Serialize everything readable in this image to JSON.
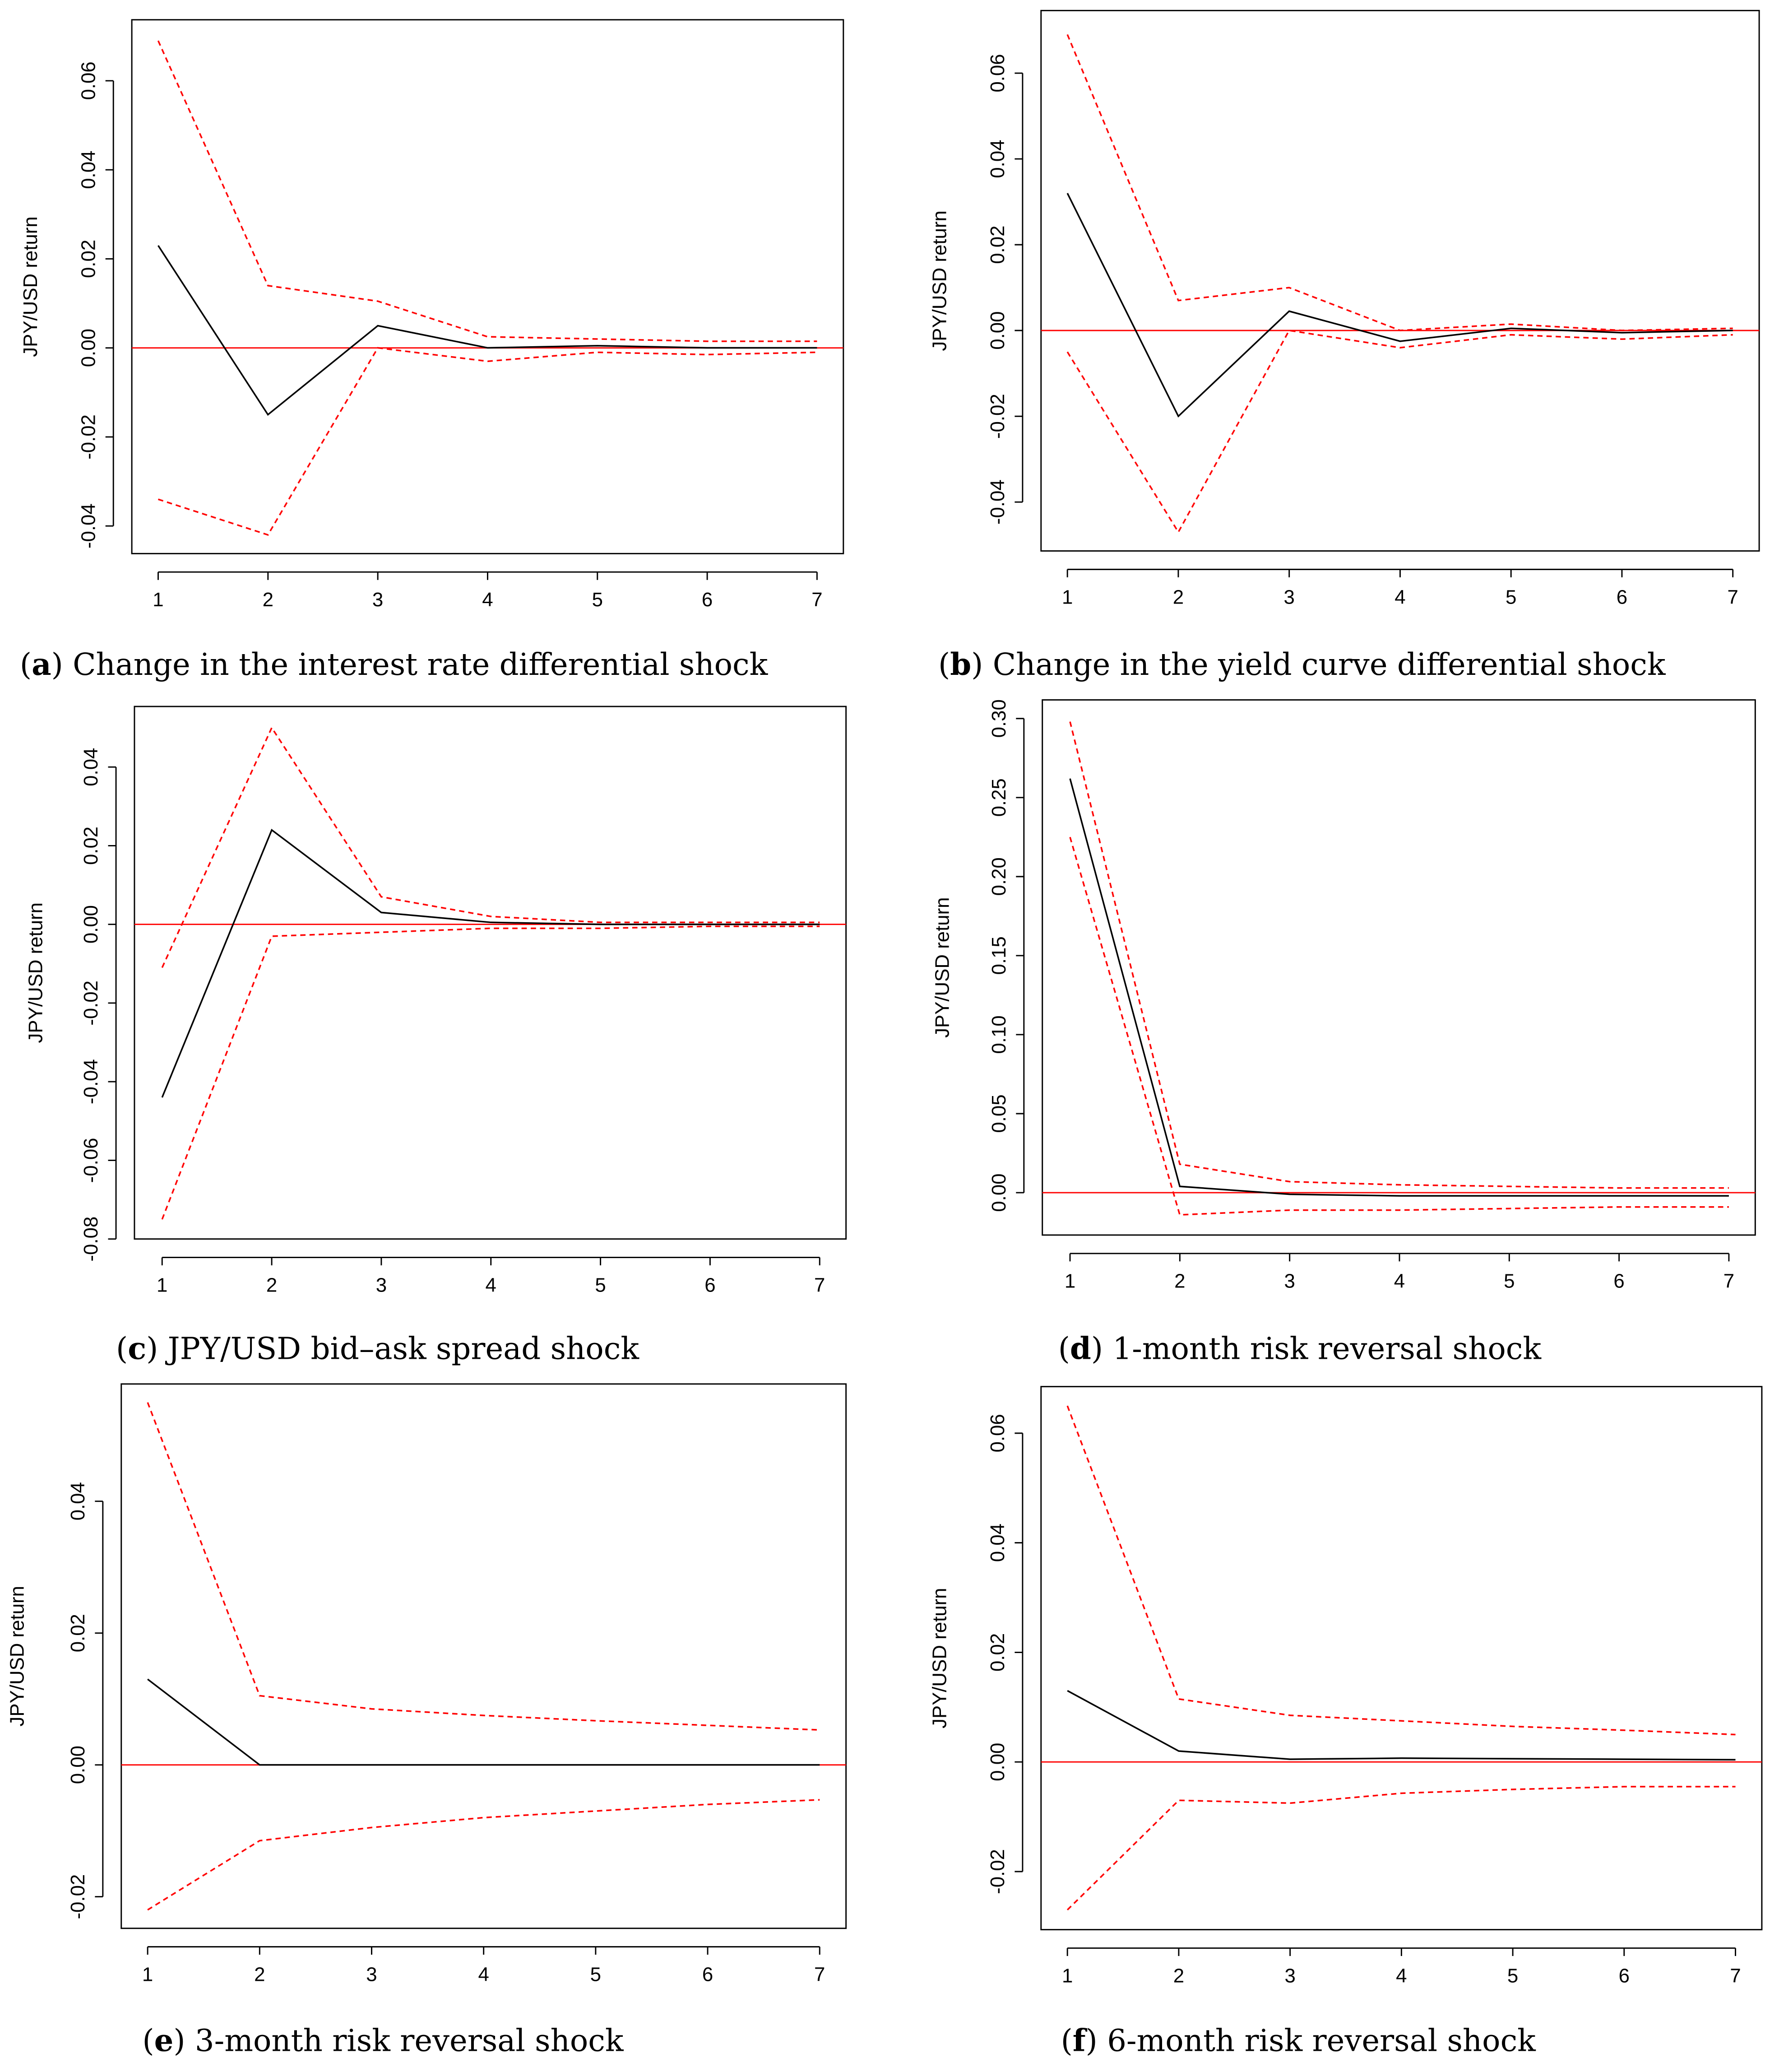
{
  "chart_data": [
    {
      "type": "line",
      "id": "a",
      "caption_letter": "a",
      "caption": "Change in the interest rate differential shock",
      "ylabel": "JPY/USD return",
      "xlabel": "",
      "x": [
        1,
        2,
        3,
        4,
        5,
        6,
        7
      ],
      "xticks": [
        "1",
        "2",
        "3",
        "4",
        "5",
        "6",
        "7"
      ],
      "yticks": [
        -0.04,
        -0.02,
        0.0,
        0.02,
        0.04,
        0.06
      ],
      "ytick_labels": [
        "-0.04",
        "-0.02",
        "0.00",
        "0.02",
        "0.04",
        "0.06"
      ],
      "ylim": [
        -0.0462,
        0.0737
      ],
      "series": [
        {
          "name": "irf",
          "style": "solid",
          "color": "#000000",
          "values": [
            0.023,
            -0.015,
            0.005,
            0.0,
            0.0005,
            0.0,
            0.0
          ]
        },
        {
          "name": "upper",
          "style": "dashed",
          "color": "#ff0000",
          "values": [
            0.069,
            0.014,
            0.0105,
            0.0025,
            0.002,
            0.0015,
            0.0015
          ]
        },
        {
          "name": "lower",
          "style": "dashed",
          "color": "#ff0000",
          "values": [
            -0.034,
            -0.042,
            0.0,
            -0.003,
            -0.001,
            -0.0015,
            -0.001
          ]
        }
      ]
    },
    {
      "type": "line",
      "id": "b",
      "caption_letter": "b",
      "caption": "Change in the yield curve differential shock",
      "ylabel": "JPY/USD return",
      "xlabel": "",
      "x": [
        1,
        2,
        3,
        4,
        5,
        6,
        7
      ],
      "xticks": [
        "1",
        "2",
        "3",
        "4",
        "5",
        "6",
        "7"
      ],
      "yticks": [
        -0.04,
        -0.02,
        0.0,
        0.02,
        0.04,
        0.06
      ],
      "ytick_labels": [
        "-0.04",
        "-0.02",
        "0.00",
        "0.02",
        "0.04",
        "0.06"
      ],
      "ylim": [
        -0.0514,
        0.0746
      ],
      "series": [
        {
          "name": "irf",
          "style": "solid",
          "color": "#000000",
          "values": [
            0.032,
            -0.02,
            0.0045,
            -0.0025,
            0.0005,
            -0.0005,
            0.0
          ]
        },
        {
          "name": "upper",
          "style": "dashed",
          "color": "#ff0000",
          "values": [
            0.069,
            0.007,
            0.01,
            0.0,
            0.0015,
            0.0,
            0.0005
          ]
        },
        {
          "name": "lower",
          "style": "dashed",
          "color": "#ff0000",
          "values": [
            -0.005,
            -0.047,
            0.0,
            -0.004,
            -0.001,
            -0.002,
            -0.001
          ]
        }
      ]
    },
    {
      "type": "line",
      "id": "c",
      "caption_letter": "c",
      "caption": "JPY/USD bid–ask spread shock",
      "ylabel": "JPY/USD return",
      "xlabel": "",
      "x": [
        1,
        2,
        3,
        4,
        5,
        6,
        7
      ],
      "xticks": [
        "1",
        "2",
        "3",
        "4",
        "5",
        "6",
        "7"
      ],
      "yticks": [
        -0.08,
        -0.06,
        -0.04,
        -0.02,
        0.0,
        0.02,
        0.04
      ],
      "ytick_labels": [
        "-0.08",
        "-0.06",
        "-0.04",
        "-0.02",
        "0.00",
        "0.02",
        "0.04"
      ],
      "ylim": [
        -0.08,
        0.0554
      ],
      "series": [
        {
          "name": "irf",
          "style": "solid",
          "color": "#000000",
          "values": [
            -0.044,
            0.024,
            0.003,
            0.0005,
            0.0,
            0.0,
            0.0
          ]
        },
        {
          "name": "upper",
          "style": "dashed",
          "color": "#ff0000",
          "values": [
            -0.011,
            0.05,
            0.007,
            0.002,
            0.0005,
            0.0005,
            0.0005
          ]
        },
        {
          "name": "lower",
          "style": "dashed",
          "color": "#ff0000",
          "values": [
            -0.075,
            -0.003,
            -0.002,
            -0.001,
            -0.001,
            -0.0005,
            -0.0005
          ]
        }
      ]
    },
    {
      "type": "line",
      "id": "d",
      "caption_letter": "d",
      "caption": "1-month risk reversal shock",
      "ylabel": "JPY/USD return",
      "xlabel": "",
      "x": [
        1,
        2,
        3,
        4,
        5,
        6,
        7
      ],
      "xticks": [
        "1",
        "2",
        "3",
        "4",
        "5",
        "6",
        "7"
      ],
      "yticks": [
        0.0,
        0.05,
        0.1,
        0.15,
        0.2,
        0.25,
        0.3
      ],
      "ytick_labels": [
        "0.00",
        "0.05",
        "0.10",
        "0.15",
        "0.20",
        "0.25",
        "0.30"
      ],
      "ylim": [
        -0.0268,
        0.3118
      ],
      "series": [
        {
          "name": "irf",
          "style": "solid",
          "color": "#000000",
          "values": [
            0.262,
            0.004,
            -0.001,
            -0.002,
            -0.002,
            -0.002,
            -0.002
          ]
        },
        {
          "name": "upper",
          "style": "dashed",
          "color": "#ff0000",
          "values": [
            0.298,
            0.018,
            0.007,
            0.005,
            0.004,
            0.003,
            0.003
          ]
        },
        {
          "name": "lower",
          "style": "dashed",
          "color": "#ff0000",
          "values": [
            0.225,
            -0.014,
            -0.011,
            -0.011,
            -0.01,
            -0.009,
            -0.009
          ]
        }
      ]
    },
    {
      "type": "line",
      "id": "e",
      "caption_letter": "e",
      "caption": "3-month risk reversal shock",
      "ylabel": "JPY/USD return",
      "xlabel": "",
      "x": [
        1,
        2,
        3,
        4,
        5,
        6,
        7
      ],
      "xticks": [
        "1",
        "2",
        "3",
        "4",
        "5",
        "6",
        "7"
      ],
      "yticks": [
        -0.02,
        0.0,
        0.02,
        0.04
      ],
      "ytick_labels": [
        "-0.02",
        "0.00",
        "0.02",
        "0.04"
      ],
      "ylim": [
        -0.0248,
        0.0578
      ],
      "series": [
        {
          "name": "irf",
          "style": "solid",
          "color": "#000000",
          "values": [
            0.013,
            0.0,
            0.0,
            0.0,
            0.0,
            0.0,
            0.0
          ]
        },
        {
          "name": "upper",
          "style": "dashed",
          "color": "#ff0000",
          "values": [
            0.055,
            0.0105,
            0.0085,
            0.0075,
            0.0067,
            0.006,
            0.0053
          ]
        },
        {
          "name": "lower",
          "style": "dashed",
          "color": "#ff0000",
          "values": [
            -0.022,
            -0.0115,
            -0.0095,
            -0.008,
            -0.007,
            -0.006,
            -0.0053
          ]
        }
      ]
    },
    {
      "type": "line",
      "id": "f",
      "caption_letter": "f",
      "caption": "6-month risk reversal shock",
      "ylabel": "JPY/USD return",
      "xlabel": "",
      "x": [
        1,
        2,
        3,
        4,
        5,
        6,
        7
      ],
      "xticks": [
        "1",
        "2",
        "3",
        "4",
        "5",
        "6",
        "7"
      ],
      "yticks": [
        -0.02,
        0.0,
        0.02,
        0.04,
        0.06
      ],
      "ytick_labels": [
        "-0.02",
        "0.00",
        "0.02",
        "0.04",
        "0.06"
      ],
      "ylim": [
        -0.0306,
        0.0685
      ],
      "series": [
        {
          "name": "irf",
          "style": "solid",
          "color": "#000000",
          "values": [
            0.013,
            0.002,
            0.0005,
            0.0007,
            0.0006,
            0.0005,
            0.0004
          ]
        },
        {
          "name": "upper",
          "style": "dashed",
          "color": "#ff0000",
          "values": [
            0.065,
            0.0115,
            0.0085,
            0.0075,
            0.0065,
            0.0058,
            0.005
          ]
        },
        {
          "name": "lower",
          "style": "dashed",
          "color": "#ff0000",
          "values": [
            -0.027,
            -0.007,
            -0.0075,
            -0.0057,
            -0.005,
            -0.0045,
            -0.0045
          ]
        }
      ]
    }
  ],
  "zero_line_color": "#ff0000"
}
